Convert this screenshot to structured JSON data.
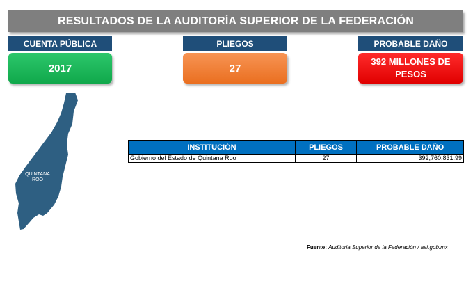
{
  "title": "RESULTADOS DE LA AUDITORÍA SUPERIOR DE LA FEDERACIÓN",
  "kpis": [
    {
      "label": "CUENTA PÚBLICA",
      "value": "2017",
      "color": "#10a84b"
    },
    {
      "label": "PLIEGOS",
      "value": "27",
      "color": "#ea6f20"
    },
    {
      "label": "PROBABLE DAÑO",
      "value": "392 MILLONES DE PESOS",
      "color": "#e00000"
    }
  ],
  "map": {
    "label_line1": "QUINTANA",
    "label_line2": "ROO",
    "fill": "#2e5f82"
  },
  "table": {
    "headers": [
      "INSTITUCIÓN",
      "PLIEGOS",
      "PROBABLE DAÑO"
    ],
    "rows": [
      {
        "institucion": "Gobierno del Estado de Quintana Roo",
        "pliegos": "27",
        "dano": "392,760,831.99"
      }
    ]
  },
  "source": {
    "label": "Fuente:",
    "text": "Auditoria Superior de la Federación / asf.gob.mx"
  }
}
